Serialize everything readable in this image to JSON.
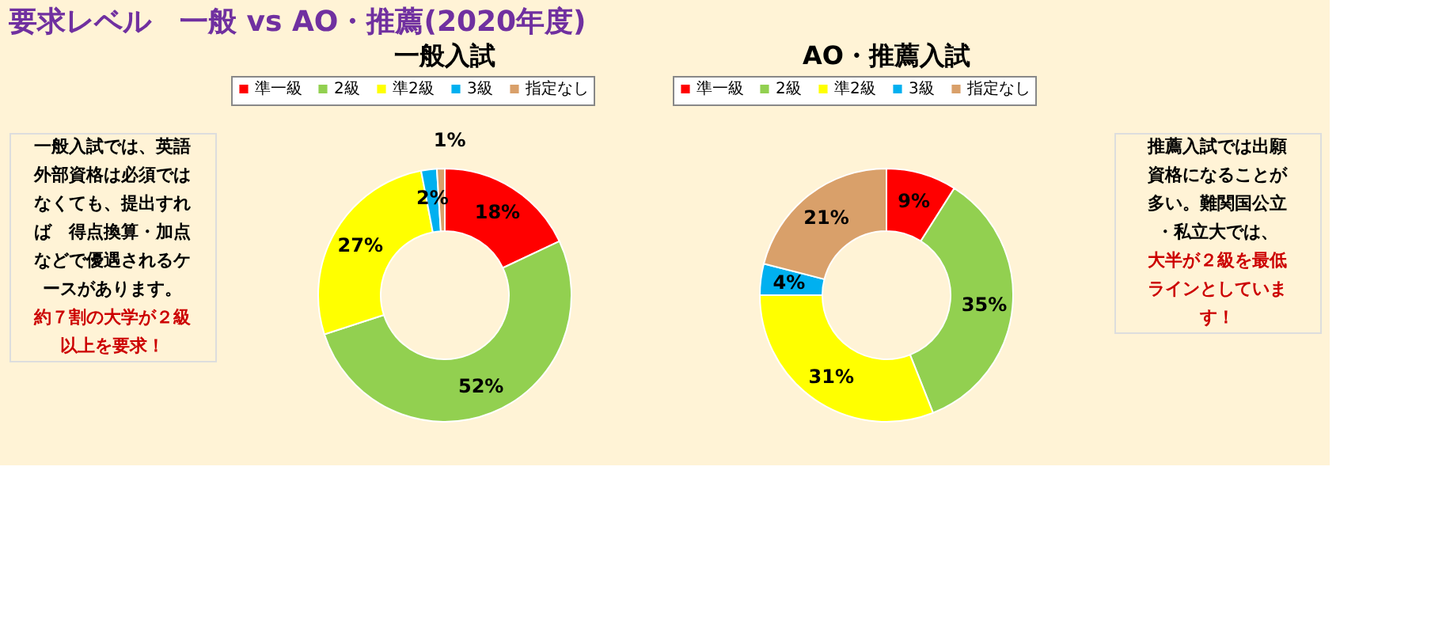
{
  "chart_data": [
    {
      "type": "donut",
      "title": "一般入試",
      "categories": [
        "準一級",
        "2級",
        "準2級",
        "3級",
        "指定なし"
      ],
      "values": [
        18,
        52,
        27,
        2,
        1
      ],
      "colors": [
        "#ff0000",
        "#92d050",
        "#ffff00",
        "#00b0f0",
        "#d9a06a"
      ],
      "value_labels": [
        "18%",
        "52%",
        "27%",
        "2%",
        "1%"
      ],
      "legend": "top",
      "annotations": [
        "要求レベル　一般 vs AO・推薦(2020年度)",
        "一般入試では、英語外部資格は必須ではなくても、提出すれば　得点換算・加点などで優遇されるケースがあります。",
        "約７割の大学が２級以上を要求！"
      ]
    },
    {
      "type": "donut",
      "title": "AO・推薦入試",
      "categories": [
        "準一級",
        "2級",
        "準2級",
        "3級",
        "指定なし"
      ],
      "values": [
        9,
        35,
        31,
        4,
        21
      ],
      "colors": [
        "#ff0000",
        "#92d050",
        "#ffff00",
        "#00b0f0",
        "#d9a06a"
      ],
      "value_labels": [
        "9%",
        "35%",
        "31%",
        "4%",
        "21%"
      ],
      "legend": "top",
      "annotations": [
        "推薦入試では出願資格になることが多い。難関国公立・私立大では、",
        "大半が２級を最低ラインとしています！"
      ]
    }
  ]
}
